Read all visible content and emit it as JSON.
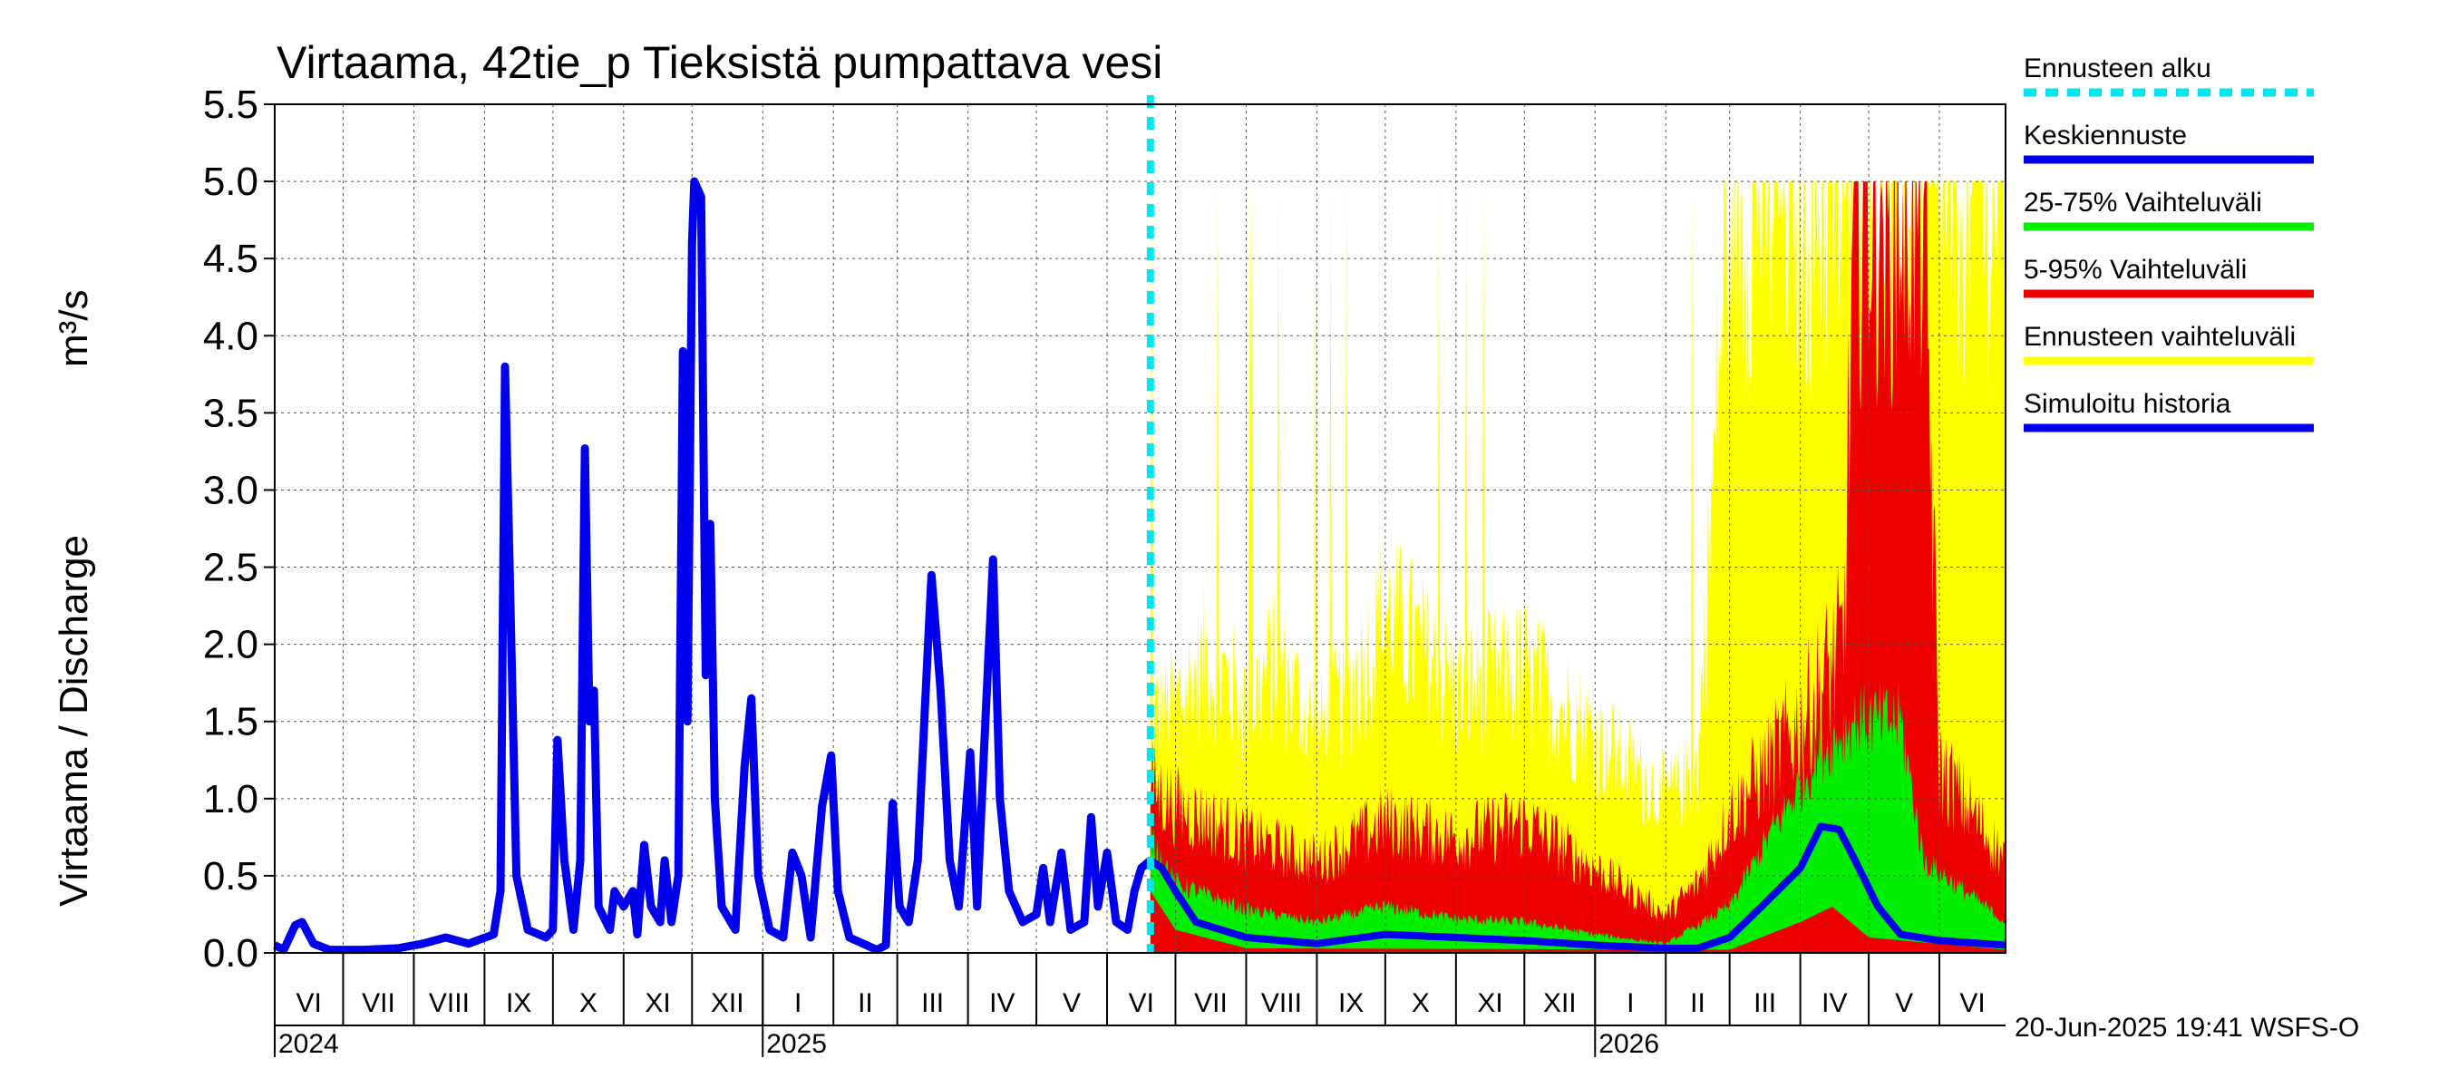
{
  "chart_data": {
    "type": "area",
    "title": "Virtaama, 42tie_p Tieksistä pumpattava vesi",
    "ylabel": "Virtaama / Discharge",
    "yunit": "m³/s",
    "ylim": [
      0,
      5.5
    ],
    "yticks": [
      "0.0",
      "0.5",
      "1.0",
      "1.5",
      "2.0",
      "2.5",
      "3.0",
      "3.5",
      "4.0",
      "4.5",
      "5.0",
      "5.5"
    ],
    "grid": true,
    "x_start": "2024-06-01",
    "x_end": "2026-06-30",
    "forecast_start": "2025-06-20",
    "months": [
      {
        "label": "VI",
        "date": "2024-06-01"
      },
      {
        "label": "VII",
        "date": "2024-07-01"
      },
      {
        "label": "VIII",
        "date": "2024-08-01"
      },
      {
        "label": "IX",
        "date": "2024-09-01"
      },
      {
        "label": "X",
        "date": "2024-10-01"
      },
      {
        "label": "XI",
        "date": "2024-11-01"
      },
      {
        "label": "XII",
        "date": "2024-12-01"
      },
      {
        "label": "I",
        "date": "2025-01-01"
      },
      {
        "label": "II",
        "date": "2025-02-01"
      },
      {
        "label": "III",
        "date": "2025-03-01"
      },
      {
        "label": "IV",
        "date": "2025-04-01"
      },
      {
        "label": "V",
        "date": "2025-05-01"
      },
      {
        "label": "VI",
        "date": "2025-06-01"
      },
      {
        "label": "VII",
        "date": "2025-07-01"
      },
      {
        "label": "VIII",
        "date": "2025-08-01"
      },
      {
        "label": "IX",
        "date": "2025-09-01"
      },
      {
        "label": "X",
        "date": "2025-10-01"
      },
      {
        "label": "XI",
        "date": "2025-11-01"
      },
      {
        "label": "XII",
        "date": "2025-12-01"
      },
      {
        "label": "I",
        "date": "2026-01-01"
      },
      {
        "label": "II",
        "date": "2026-02-01"
      },
      {
        "label": "III",
        "date": "2026-03-01"
      },
      {
        "label": "IV",
        "date": "2026-04-01"
      },
      {
        "label": "V",
        "date": "2026-05-01"
      },
      {
        "label": "VI",
        "date": "2026-06-01"
      }
    ],
    "years": [
      {
        "label": "2024",
        "date": "2024-06-01"
      },
      {
        "label": "2025",
        "date": "2025-01-01"
      },
      {
        "label": "2026",
        "date": "2026-01-01"
      }
    ],
    "legend": [
      {
        "label": "Ennusteen alku",
        "color": "#00e5ee",
        "style": "dashed"
      },
      {
        "label": "Keskiennuste",
        "color": "#0000ee",
        "style": "solid"
      },
      {
        "label": "25-75% Vaihteluväli",
        "color": "#00ee00",
        "style": "solid"
      },
      {
        "label": "5-95% Vaihteluväli",
        "color": "#ee0000",
        "style": "solid"
      },
      {
        "label": "Ennusteen vaihteluväli",
        "color": "#ffff00",
        "style": "solid"
      },
      {
        "label": "Simuloitu historia",
        "color": "#0000ee",
        "style": "solid"
      }
    ],
    "colors": {
      "history": "#0000ee",
      "median": "#0000ee",
      "p25_75": "#00ee00",
      "p5_95": "#ee0000",
      "range": "#ffff00",
      "forecast_start": "#00e5ee"
    },
    "series": [
      {
        "name": "Simuloitu historia",
        "points": [
          [
            "2024-06-01",
            0.05
          ],
          [
            "2024-06-05",
            0.02
          ],
          [
            "2024-06-10",
            0.18
          ],
          [
            "2024-06-13",
            0.2
          ],
          [
            "2024-06-18",
            0.06
          ],
          [
            "2024-06-25",
            0.02
          ],
          [
            "2024-07-10",
            0.02
          ],
          [
            "2024-07-25",
            0.03
          ],
          [
            "2024-08-05",
            0.06
          ],
          [
            "2024-08-15",
            0.1
          ],
          [
            "2024-08-25",
            0.06
          ],
          [
            "2024-09-05",
            0.12
          ],
          [
            "2024-09-08",
            0.4
          ],
          [
            "2024-09-10",
            3.8
          ],
          [
            "2024-09-12",
            2.5
          ],
          [
            "2024-09-15",
            0.5
          ],
          [
            "2024-09-20",
            0.15
          ],
          [
            "2024-09-28",
            0.1
          ],
          [
            "2024-10-01",
            0.15
          ],
          [
            "2024-10-03",
            1.38
          ],
          [
            "2024-10-06",
            0.6
          ],
          [
            "2024-10-10",
            0.15
          ],
          [
            "2024-10-13",
            0.6
          ],
          [
            "2024-10-15",
            3.27
          ],
          [
            "2024-10-17",
            1.5
          ],
          [
            "2024-10-19",
            1.7
          ],
          [
            "2024-10-21",
            0.3
          ],
          [
            "2024-10-26",
            0.15
          ],
          [
            "2024-10-28",
            0.4
          ],
          [
            "2024-11-01",
            0.3
          ],
          [
            "2024-11-05",
            0.4
          ],
          [
            "2024-11-07",
            0.12
          ],
          [
            "2024-11-10",
            0.7
          ],
          [
            "2024-11-13",
            0.3
          ],
          [
            "2024-11-17",
            0.2
          ],
          [
            "2024-11-19",
            0.6
          ],
          [
            "2024-11-22",
            0.2
          ],
          [
            "2024-11-25",
            0.5
          ],
          [
            "2024-11-27",
            3.9
          ],
          [
            "2024-11-29",
            1.5
          ],
          [
            "2024-12-01",
            4.6
          ],
          [
            "2024-12-02",
            5.0
          ],
          [
            "2024-12-05",
            4.9
          ],
          [
            "2024-12-07",
            1.8
          ],
          [
            "2024-12-09",
            2.78
          ],
          [
            "2024-12-11",
            1.0
          ],
          [
            "2024-12-14",
            0.3
          ],
          [
            "2024-12-20",
            0.15
          ],
          [
            "2024-12-24",
            1.2
          ],
          [
            "2024-12-27",
            1.65
          ],
          [
            "2024-12-30",
            0.5
          ],
          [
            "2025-01-04",
            0.15
          ],
          [
            "2025-01-10",
            0.1
          ],
          [
            "2025-01-14",
            0.65
          ],
          [
            "2025-01-18",
            0.5
          ],
          [
            "2025-01-22",
            0.1
          ],
          [
            "2025-01-27",
            0.95
          ],
          [
            "2025-01-31",
            1.28
          ],
          [
            "2025-02-03",
            0.4
          ],
          [
            "2025-02-08",
            0.1
          ],
          [
            "2025-02-20",
            0.02
          ],
          [
            "2025-02-24",
            0.05
          ],
          [
            "2025-02-27",
            0.97
          ],
          [
            "2025-03-02",
            0.3
          ],
          [
            "2025-03-06",
            0.2
          ],
          [
            "2025-03-10",
            0.6
          ],
          [
            "2025-03-13",
            1.55
          ],
          [
            "2025-03-16",
            2.45
          ],
          [
            "2025-03-20",
            1.7
          ],
          [
            "2025-03-24",
            0.6
          ],
          [
            "2025-03-28",
            0.3
          ],
          [
            "2025-04-02",
            1.3
          ],
          [
            "2025-04-05",
            0.3
          ],
          [
            "2025-04-08",
            1.3
          ],
          [
            "2025-04-12",
            2.55
          ],
          [
            "2025-04-15",
            1.0
          ],
          [
            "2025-04-19",
            0.4
          ],
          [
            "2025-04-25",
            0.2
          ],
          [
            "2025-05-01",
            0.25
          ],
          [
            "2025-05-04",
            0.55
          ],
          [
            "2025-05-07",
            0.2
          ],
          [
            "2025-05-12",
            0.65
          ],
          [
            "2025-05-16",
            0.15
          ],
          [
            "2025-05-22",
            0.2
          ],
          [
            "2025-05-25",
            0.88
          ],
          [
            "2025-05-28",
            0.3
          ],
          [
            "2025-06-01",
            0.65
          ],
          [
            "2025-06-05",
            0.2
          ],
          [
            "2025-06-10",
            0.15
          ],
          [
            "2025-06-13",
            0.4
          ],
          [
            "2025-06-16",
            0.55
          ],
          [
            "2025-06-20",
            0.6
          ]
        ]
      },
      {
        "name": "Keskiennuste",
        "points": [
          [
            "2025-06-20",
            0.6
          ],
          [
            "2025-06-25",
            0.55
          ],
          [
            "2025-07-01",
            0.4
          ],
          [
            "2025-07-10",
            0.2
          ],
          [
            "2025-08-01",
            0.1
          ],
          [
            "2025-09-01",
            0.06
          ],
          [
            "2025-10-01",
            0.12
          ],
          [
            "2025-11-01",
            0.1
          ],
          [
            "2025-12-01",
            0.08
          ],
          [
            "2026-01-01",
            0.05
          ],
          [
            "2026-02-01",
            0.03
          ],
          [
            "2026-02-15",
            0.03
          ],
          [
            "2026-03-01",
            0.1
          ],
          [
            "2026-03-15",
            0.3
          ],
          [
            "2026-04-01",
            0.55
          ],
          [
            "2026-04-10",
            0.82
          ],
          [
            "2026-04-18",
            0.8
          ],
          [
            "2026-04-25",
            0.6
          ],
          [
            "2026-05-05",
            0.3
          ],
          [
            "2026-05-15",
            0.12
          ],
          [
            "2026-06-01",
            0.08
          ],
          [
            "2026-06-30",
            0.05
          ]
        ]
      }
    ],
    "bands": [
      {
        "name": "Ennusteen vaihteluväli",
        "upper": [
          [
            "2025-06-20",
            1.5
          ],
          [
            "2025-07-01",
            1.6
          ],
          [
            "2025-07-15",
            1.9
          ],
          [
            "2025-08-01",
            1.6
          ],
          [
            "2025-08-15",
            1.9
          ],
          [
            "2025-09-01",
            1.4
          ],
          [
            "2025-09-15",
            1.7
          ],
          [
            "2025-10-01",
            2.2
          ],
          [
            "2025-11-01",
            1.7
          ],
          [
            "2025-12-01",
            1.8
          ],
          [
            "2026-01-01",
            1.4
          ],
          [
            "2026-02-01",
            1.0
          ],
          [
            "2026-02-15",
            1.2
          ],
          [
            "2026-03-01",
            5.0
          ],
          [
            "2026-06-30",
            5.0
          ]
        ],
        "lower": [
          [
            "2025-06-20",
            0.0
          ],
          [
            "2026-06-30",
            0.0
          ]
        ]
      },
      {
        "name": "5-95% Vaihteluväli",
        "upper": [
          [
            "2025-06-20",
            1.1
          ],
          [
            "2025-07-01",
            0.95
          ],
          [
            "2025-08-01",
            0.75
          ],
          [
            "2025-09-01",
            0.6
          ],
          [
            "2025-10-01",
            0.85
          ],
          [
            "2025-11-01",
            0.75
          ],
          [
            "2025-12-01",
            0.85
          ],
          [
            "2026-01-01",
            0.55
          ],
          [
            "2026-02-01",
            0.25
          ],
          [
            "2026-02-15",
            0.45
          ],
          [
            "2026-03-01",
            0.9
          ],
          [
            "2026-04-01",
            1.5
          ],
          [
            "2026-04-20",
            2.0
          ],
          [
            "2026-04-25",
            5.0
          ],
          [
            "2026-05-25",
            5.0
          ],
          [
            "2026-06-01",
            1.2
          ],
          [
            "2026-06-30",
            0.6
          ]
        ],
        "lower": [
          [
            "2025-06-20",
            0.0
          ],
          [
            "2026-06-30",
            0.0
          ]
        ]
      },
      {
        "name": "25-75% Vaihteluväli",
        "upper": [
          [
            "2025-06-20",
            0.75
          ],
          [
            "2025-07-01",
            0.45
          ],
          [
            "2025-08-01",
            0.28
          ],
          [
            "2025-09-01",
            0.2
          ],
          [
            "2025-10-01",
            0.3
          ],
          [
            "2025-11-01",
            0.22
          ],
          [
            "2025-12-01",
            0.2
          ],
          [
            "2026-01-01",
            0.12
          ],
          [
            "2026-02-01",
            0.06
          ],
          [
            "2026-03-01",
            0.3
          ],
          [
            "2026-03-20",
            0.8
          ],
          [
            "2026-04-10",
            1.3
          ],
          [
            "2026-04-25",
            1.5
          ],
          [
            "2026-05-15",
            1.5
          ],
          [
            "2026-05-25",
            0.6
          ],
          [
            "2026-06-30",
            0.2
          ]
        ],
        "lower": [
          [
            "2025-06-20",
            0.4
          ],
          [
            "2025-07-01",
            0.15
          ],
          [
            "2025-08-01",
            0.03
          ],
          [
            "2026-03-01",
            0.02
          ],
          [
            "2026-04-01",
            0.2
          ],
          [
            "2026-04-15",
            0.3
          ],
          [
            "2026-05-01",
            0.1
          ],
          [
            "2026-06-30",
            0.02
          ]
        ]
      }
    ],
    "timestamp": "20-Jun-2025 19:41 WSFS-O"
  }
}
